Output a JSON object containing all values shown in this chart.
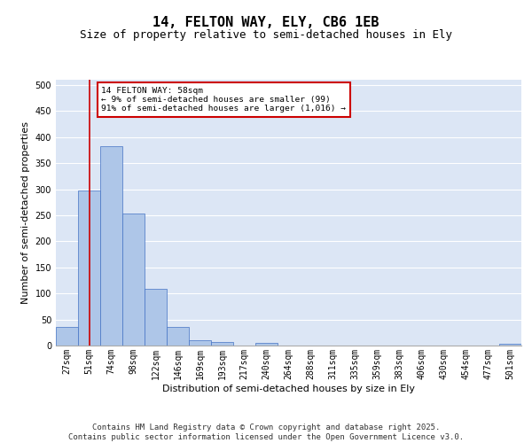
{
  "title": "14, FELTON WAY, ELY, CB6 1EB",
  "subtitle": "Size of property relative to semi-detached houses in Ely",
  "xlabel": "Distribution of semi-detached houses by size in Ely",
  "ylabel": "Number of semi-detached properties",
  "categories": [
    "27sqm",
    "51sqm",
    "74sqm",
    "98sqm",
    "122sqm",
    "146sqm",
    "169sqm",
    "193sqm",
    "217sqm",
    "240sqm",
    "264sqm",
    "288sqm",
    "311sqm",
    "335sqm",
    "359sqm",
    "383sqm",
    "406sqm",
    "430sqm",
    "454sqm",
    "477sqm",
    "501sqm"
  ],
  "values": [
    35,
    297,
    383,
    253,
    108,
    35,
    10,
    6,
    0,
    5,
    0,
    0,
    0,
    0,
    0,
    0,
    0,
    0,
    0,
    0,
    4
  ],
  "bar_color": "#aec6e8",
  "bar_edge_color": "#4472c4",
  "vline_x_index": 1,
  "vline_color": "#cc0000",
  "annotation_text": "14 FELTON WAY: 58sqm\n← 9% of semi-detached houses are smaller (99)\n91% of semi-detached houses are larger (1,016) →",
  "annotation_box_color": "#ffffff",
  "annotation_box_edge": "#cc0000",
  "ylim": [
    0,
    510
  ],
  "yticks": [
    0,
    50,
    100,
    150,
    200,
    250,
    300,
    350,
    400,
    450,
    500
  ],
  "background_color": "#dce6f5",
  "footer_text": "Contains HM Land Registry data © Crown copyright and database right 2025.\nContains public sector information licensed under the Open Government Licence v3.0.",
  "title_fontsize": 11,
  "subtitle_fontsize": 9,
  "label_fontsize": 8,
  "tick_fontsize": 7,
  "footer_fontsize": 6.5
}
